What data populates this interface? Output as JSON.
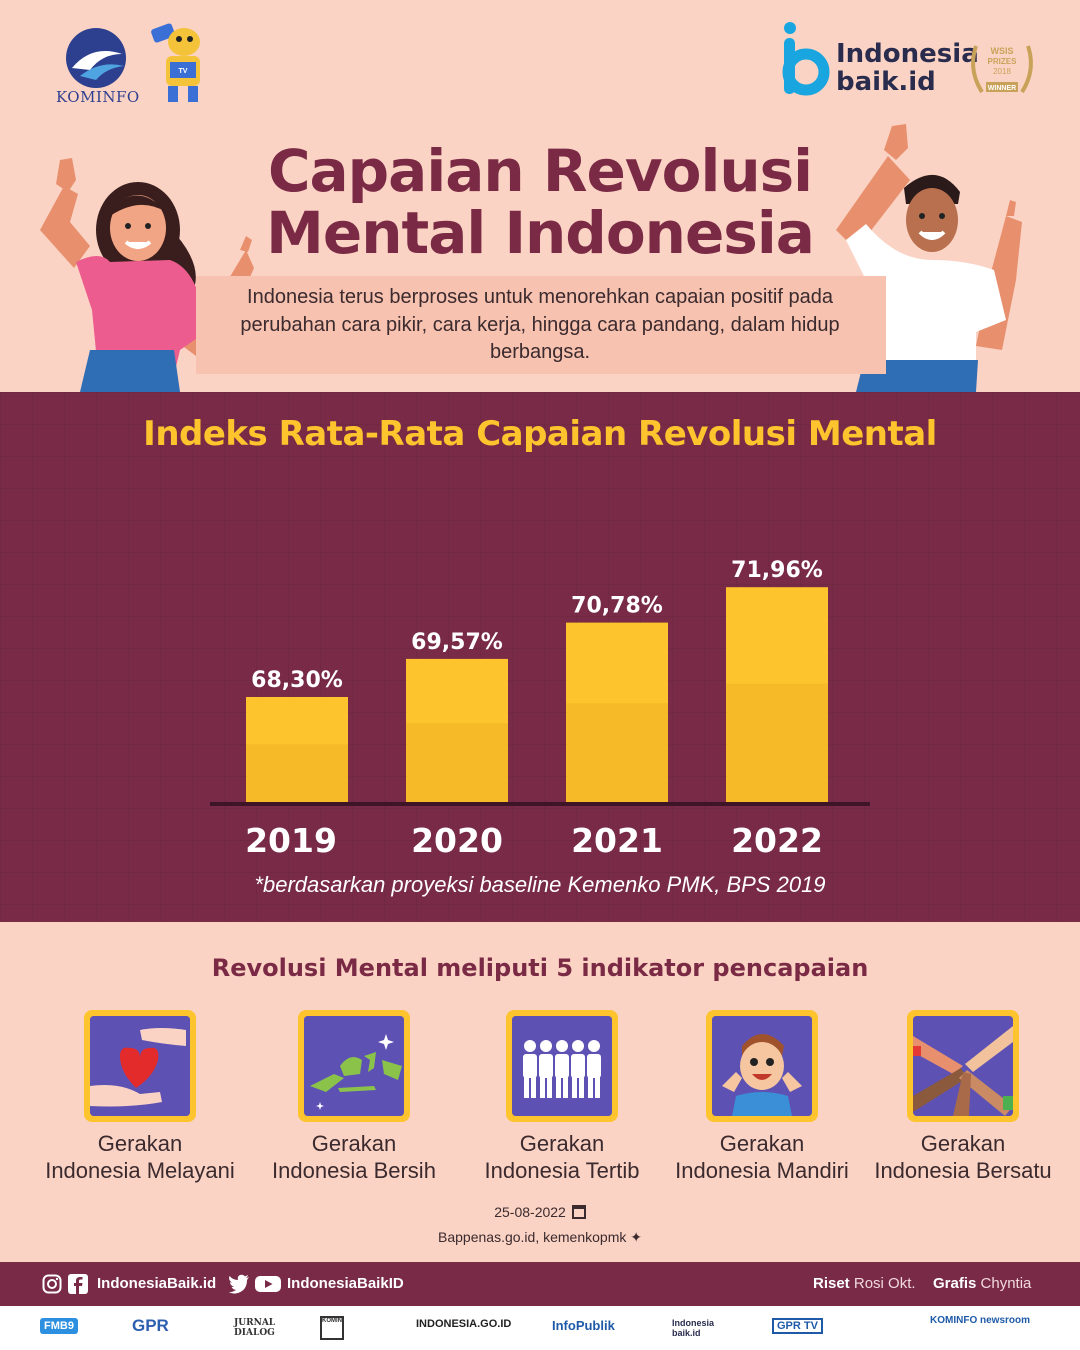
{
  "header": {
    "kominfo": "KOMINFO",
    "mascot_text": "TV DIGITAL",
    "ib_line1": "Indonesia",
    "ib_line2": "baik.id",
    "wsis": "WSIS PRIZES 2018 WINNER",
    "title_line1": "Capaian Revolusi",
    "title_line2": "Mental Indonesia",
    "subtitle": "Indonesia terus berproses untuk menorehkan capaian positif pada perubahan cara pikir, cara kerja, hingga cara pandang, dalam hidup berbangsa."
  },
  "chart_data": {
    "type": "bar",
    "title": "Indeks Rata-Rata Capaian Revolusi Mental",
    "categories": [
      "2019",
      "2020",
      "2021",
      "2022"
    ],
    "values": [
      68.3,
      69.57,
      70.78,
      71.96
    ],
    "value_labels": [
      "68,30%",
      "69,57%",
      "70,78%",
      "71,96%"
    ],
    "unit": "%",
    "bar_color": "#fdc42e",
    "grid": false,
    "note": "*berdasarkan proyeksi baseline Kemenko PMK, BPS 2019"
  },
  "indicators": {
    "title": "Revolusi Mental meliputi 5 indikator pencapaian",
    "items": [
      {
        "line1": "Gerakan",
        "line2": "Indonesia Melayani",
        "icon": "heart-hands-icon"
      },
      {
        "line1": "Gerakan",
        "line2": "Indonesia Bersih",
        "icon": "indonesia-map-icon"
      },
      {
        "line1": "Gerakan",
        "line2": "Indonesia Tertib",
        "icon": "people-queue-icon"
      },
      {
        "line1": "Gerakan",
        "line2": "Indonesia Mandiri",
        "icon": "happy-child-icon"
      },
      {
        "line1": "Gerakan",
        "line2": "Indonesia Bersatu",
        "icon": "joined-hands-icon"
      }
    ]
  },
  "meta": {
    "date": "25-08-2022",
    "source": "Bappenas.go.id, kemenkopmk"
  },
  "footer": {
    "handle1": "IndonesiaBaik.id",
    "handle2": "IndonesiaBaikID",
    "riset_label": "Riset",
    "riset_name": "Rosi Okt.",
    "grafis_label": "Grafis",
    "grafis_name": "Chyntia",
    "partners": [
      "FMB9",
      "GPR",
      "JURNAL DIALOG",
      "KOMINFO",
      "INDONESIA.GO.ID",
      "InfoPublik",
      "Indonesia baik.id",
      "GPR TV",
      "KOMINFO newsroom"
    ]
  },
  "colors": {
    "background": "#fbd3c4",
    "maroon": "#782a47",
    "title": "#7a2a45",
    "yellow": "#fdc42e",
    "icon_bg": "#5d51b4"
  }
}
